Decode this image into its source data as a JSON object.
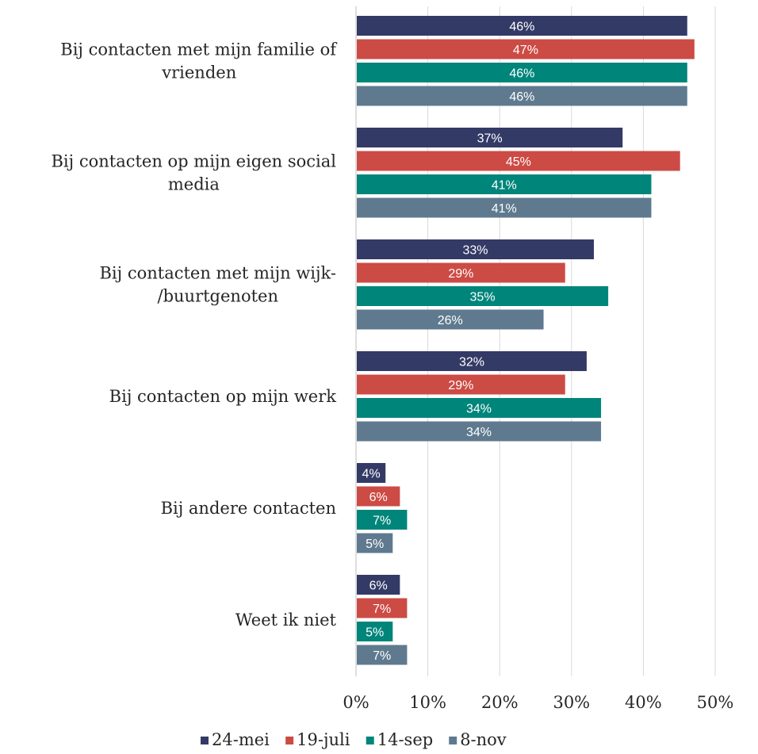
{
  "chart_data": {
    "type": "bar",
    "orientation": "horizontal",
    "categories": [
      [
        "Bij contacten met mijn familie of",
        "vrienden"
      ],
      [
        "Bij contacten op mijn eigen social",
        "media"
      ],
      [
        "Bij contacten met mijn wijk-",
        "/buurtgenoten"
      ],
      [
        "Bij contacten op mijn werk"
      ],
      [
        "Bij andere contacten"
      ],
      [
        "Weet ik niet"
      ]
    ],
    "series": [
      {
        "name": "24-mei",
        "color": "#343a66",
        "values": [
          46,
          37,
          33,
          32,
          4,
          6
        ]
      },
      {
        "name": "19-juli",
        "color": "#cc4b44",
        "values": [
          47,
          45,
          29,
          29,
          6,
          7
        ]
      },
      {
        "name": "14-sep",
        "color": "#00857a",
        "values": [
          46,
          41,
          35,
          34,
          7,
          5
        ]
      },
      {
        "name": "8-nov",
        "color": "#5f7a8f",
        "values": [
          46,
          41,
          26,
          34,
          5,
          7
        ]
      }
    ],
    "data_labels": [
      [
        "46%",
        "37%",
        "33%",
        "32%",
        "4%",
        "6%"
      ],
      [
        "47%",
        "45%",
        "29%",
        "29%",
        "6%",
        "7%"
      ],
      [
        "46%",
        "41%",
        "35%",
        "34%",
        "7%",
        "5%"
      ],
      [
        "46%",
        "41%",
        "26%",
        "34%",
        "5%",
        "7%"
      ]
    ],
    "xlim": [
      0,
      50
    ],
    "xticks": [
      0,
      10,
      20,
      30,
      40,
      50
    ],
    "xtick_labels": [
      "0%",
      "10%",
      "20%",
      "30%",
      "40%",
      "50%"
    ],
    "grid": true,
    "legend_position": "bottom"
  }
}
